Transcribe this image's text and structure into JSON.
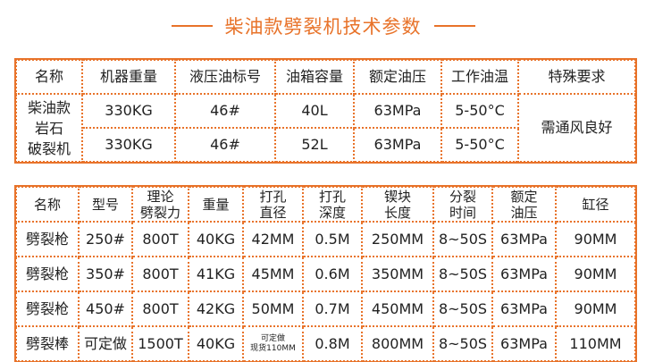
{
  "title": "柴油款劈裂机技术参数",
  "table1": {
    "headers": [
      "名称",
      "机器重量",
      "液压油标号",
      "油箱容量",
      "额定油压",
      "工作油温",
      "特殊要求"
    ],
    "name_merged": [
      "柴油款",
      "岩石",
      "破裂机"
    ],
    "special_merged": "需通风良好",
    "rows": [
      [
        "330KG",
        "46#",
        "40L",
        "63MPa",
        "5-50°C"
      ],
      [
        "330KG",
        "46#",
        "52L",
        "63MPa",
        "5-50°C"
      ]
    ]
  },
  "table2": {
    "headers": [
      [
        "名称"
      ],
      [
        "型号"
      ],
      [
        "理论",
        "劈裂力"
      ],
      [
        "重量"
      ],
      [
        "打孔",
        "直径"
      ],
      [
        "打孔",
        "深度"
      ],
      [
        "锲块",
        "长度"
      ],
      [
        "分裂",
        "时间"
      ],
      [
        "额定",
        "油压"
      ],
      [
        "缸径"
      ]
    ],
    "rows": [
      [
        "劈裂枪",
        "250#",
        "800T",
        "40KG",
        "42MM",
        "0.5M",
        "250MM",
        "8~50S",
        "63MPa",
        "90MM"
      ],
      [
        "劈裂枪",
        "350#",
        "800T",
        "41KG",
        "45MM",
        "0.6M",
        "350MM",
        "8~50S",
        "63MPa",
        "90MM"
      ],
      [
        "劈裂枪",
        "450#",
        "800T",
        "42KG",
        "50MM",
        "0.7M",
        "450MM",
        "8~50S",
        "63MPa",
        "90MM"
      ],
      [
        "劈裂棒",
        "可定做",
        "1500T",
        "40KG",
        "",
        "0.8M",
        "800MM",
        "8~50S",
        "63MPa",
        "110MM"
      ]
    ],
    "special_cell": [
      "可定做",
      "现货110MM"
    ]
  }
}
